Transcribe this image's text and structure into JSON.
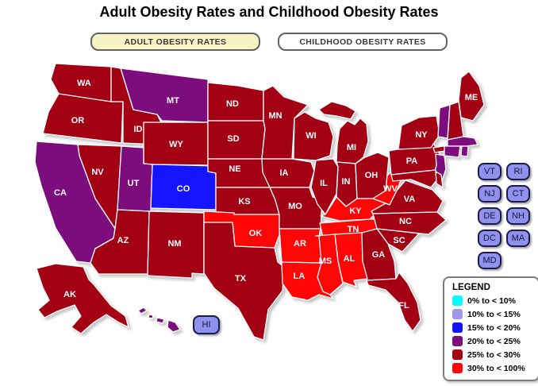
{
  "title": "Adult Obesity Rates and Childhood Obesity Rates",
  "tabs": [
    {
      "id": "adult",
      "label": "ADULT OBESITY RATES",
      "active": true
    },
    {
      "id": "childhood",
      "label": "CHILDHOOD OBESITY RATES",
      "active": false
    }
  ],
  "colors": {
    "active_tab_fill": "#F7F3C4",
    "state_button_fill": "#8F91EC",
    "state_button_border": "#1A1A4E",
    "category_colors": {
      "0-10": "#00FFFF",
      "10-15": "#9999EE",
      "15-20": "#1414FF",
      "20-25": "#7D0D7D",
      "25-30": "#A30013",
      "30-100": "#FF0505"
    }
  },
  "legend": {
    "title": "LEGEND",
    "items": [
      {
        "label": "0% to < 10%",
        "category": "0-10"
      },
      {
        "label": "10% to < 15%",
        "category": "10-15"
      },
      {
        "label": "15% to < 20%",
        "category": "15-20"
      },
      {
        "label": "20% to < 25%",
        "category": "20-25"
      },
      {
        "label": "25% to < 30%",
        "category": "25-30"
      },
      {
        "label": "30% to < 100%",
        "category": "30-100"
      }
    ]
  },
  "state_buttons": {
    "left_column": [
      "VT",
      "NJ",
      "DE",
      "DC",
      "MD"
    ],
    "right_column": [
      "RI",
      "CT",
      "NH",
      "MA"
    ],
    "hawaii": "HI"
  },
  "map": {
    "states": [
      {
        "id": "WA",
        "label": "WA",
        "category": "25-30"
      },
      {
        "id": "OR",
        "label": "OR",
        "category": "25-30"
      },
      {
        "id": "ID",
        "label": "ID",
        "category": "25-30"
      },
      {
        "id": "MT",
        "label": "MT",
        "category": "20-25"
      },
      {
        "id": "WY",
        "label": "WY",
        "category": "25-30"
      },
      {
        "id": "NV",
        "label": "NV",
        "category": "25-30"
      },
      {
        "id": "CA",
        "label": "CA",
        "category": "20-25"
      },
      {
        "id": "UT",
        "label": "UT",
        "category": "20-25"
      },
      {
        "id": "CO",
        "label": "CO",
        "category": "15-20"
      },
      {
        "id": "AZ",
        "label": "AZ",
        "category": "25-30"
      },
      {
        "id": "NM",
        "label": "NM",
        "category": "25-30"
      },
      {
        "id": "ND",
        "label": "ND",
        "category": "25-30"
      },
      {
        "id": "SD",
        "label": "SD",
        "category": "25-30"
      },
      {
        "id": "NE",
        "label": "NE",
        "category": "25-30"
      },
      {
        "id": "KS",
        "label": "KS",
        "category": "25-30"
      },
      {
        "id": "OK",
        "label": "OK",
        "category": "30-100"
      },
      {
        "id": "TX",
        "label": "TX",
        "category": "25-30"
      },
      {
        "id": "MN",
        "label": "MN",
        "category": "25-30"
      },
      {
        "id": "IA",
        "label": "IA",
        "category": "25-30"
      },
      {
        "id": "MO",
        "label": "MO",
        "category": "25-30"
      },
      {
        "id": "AR",
        "label": "AR",
        "category": "30-100"
      },
      {
        "id": "LA",
        "label": "LA",
        "category": "30-100"
      },
      {
        "id": "WI",
        "label": "WI",
        "category": "25-30"
      },
      {
        "id": "IL",
        "label": "IL",
        "category": "25-30"
      },
      {
        "id": "MI",
        "label": "MI",
        "category": "25-30"
      },
      {
        "id": "IN",
        "label": "IN",
        "category": "25-30"
      },
      {
        "id": "OH",
        "label": "OH",
        "category": "25-30"
      },
      {
        "id": "KY",
        "label": "KY",
        "category": "30-100"
      },
      {
        "id": "TN",
        "label": "TN",
        "category": "30-100"
      },
      {
        "id": "WV",
        "label": "WV",
        "category": "30-100"
      },
      {
        "id": "VA",
        "label": "VA",
        "category": "25-30"
      },
      {
        "id": "NC",
        "label": "NC",
        "category": "25-30"
      },
      {
        "id": "SC",
        "label": "SC",
        "category": "25-30"
      },
      {
        "id": "GA",
        "label": "GA",
        "category": "25-30"
      },
      {
        "id": "AL",
        "label": "AL",
        "category": "30-100"
      },
      {
        "id": "MS",
        "label": "MS",
        "category": "30-100"
      },
      {
        "id": "FL",
        "label": "FL",
        "category": "25-30"
      },
      {
        "id": "PA",
        "label": "PA",
        "category": "25-30"
      },
      {
        "id": "NY",
        "label": "NY",
        "category": "25-30"
      },
      {
        "id": "NJ",
        "label": "",
        "category": "20-25"
      },
      {
        "id": "MD",
        "label": "",
        "category": "25-30"
      },
      {
        "id": "DE",
        "label": "",
        "category": "25-30"
      },
      {
        "id": "VT",
        "label": "",
        "category": "20-25"
      },
      {
        "id": "NH",
        "label": "",
        "category": "25-30"
      },
      {
        "id": "ME",
        "label": "ME",
        "category": "25-30"
      },
      {
        "id": "MA",
        "label": "",
        "category": "20-25"
      },
      {
        "id": "CT",
        "label": "",
        "category": "20-25"
      },
      {
        "id": "RI",
        "label": "",
        "category": "20-25"
      },
      {
        "id": "AK",
        "label": "AK",
        "category": "25-30"
      },
      {
        "id": "HI",
        "label": "",
        "category": "20-25"
      }
    ]
  }
}
